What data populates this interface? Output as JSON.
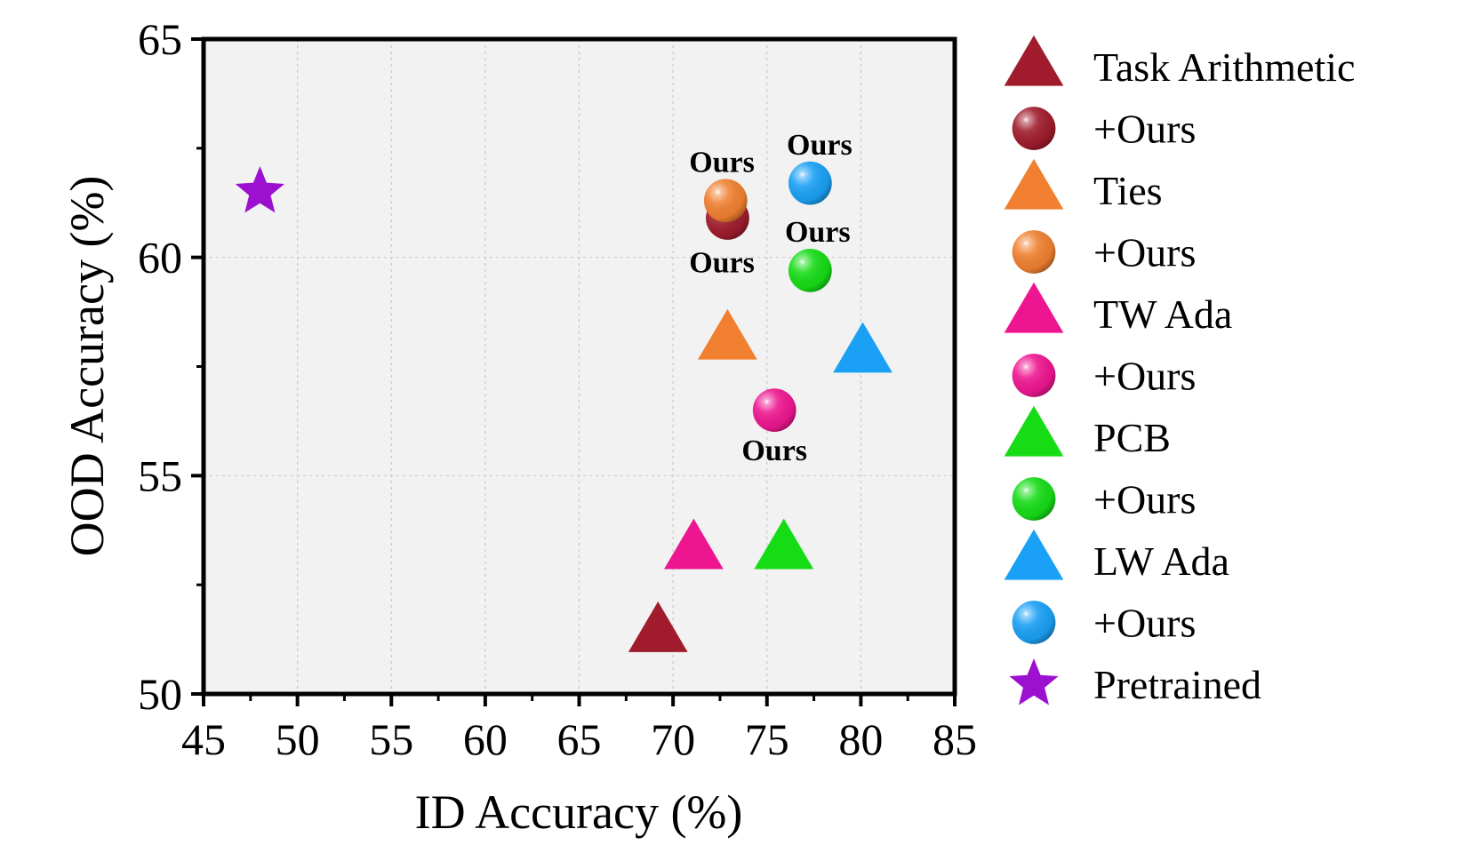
{
  "chart_data": {
    "type": "scatter",
    "xlabel": "ID Accuracy (%)",
    "ylabel": "OOD Accuracy (%)",
    "xlim": [
      45,
      85
    ],
    "ylim": [
      50,
      65
    ],
    "xticks": [
      45,
      50,
      55,
      60,
      65,
      70,
      75,
      80,
      85
    ],
    "yticks": [
      50,
      55,
      60,
      65
    ],
    "grid": true,
    "legend_position": "right",
    "series": [
      {
        "name": "Task Arithmetic",
        "marker": "triangle",
        "color": "#a01c2c",
        "points": [
          [
            69.2,
            51.4
          ]
        ]
      },
      {
        "name": "+Ours",
        "marker": "sphere",
        "color": "#a01c2c",
        "points": [
          [
            72.9,
            60.9
          ]
        ]
      },
      {
        "name": "Ties",
        "marker": "triangle",
        "color": "#f08030",
        "points": [
          [
            72.9,
            58.1
          ]
        ]
      },
      {
        "name": "+Ours",
        "marker": "sphere",
        "color": "#f08030",
        "points": [
          [
            72.8,
            61.3
          ]
        ]
      },
      {
        "name": "TW Ada",
        "marker": "triangle",
        "color": "#ee1690",
        "points": [
          [
            71.1,
            53.3
          ]
        ]
      },
      {
        "name": "+Ours",
        "marker": "sphere",
        "color": "#ee1690",
        "points": [
          [
            75.4,
            56.5
          ]
        ]
      },
      {
        "name": "PCB",
        "marker": "triangle",
        "color": "#16dc16",
        "points": [
          [
            75.9,
            53.3
          ]
        ]
      },
      {
        "name": "+Ours",
        "marker": "sphere",
        "color": "#16dc16",
        "points": [
          [
            77.3,
            59.7
          ]
        ]
      },
      {
        "name": "LW Ada",
        "marker": "triangle",
        "color": "#1aa0f5",
        "points": [
          [
            80.1,
            57.8
          ]
        ]
      },
      {
        "name": "+Ours",
        "marker": "sphere",
        "color": "#1aa0f5",
        "points": [
          [
            77.3,
            61.7
          ]
        ]
      },
      {
        "name": "Pretrained",
        "marker": "star",
        "color": "#9c10d0",
        "points": [
          [
            48.0,
            61.5
          ]
        ]
      }
    ],
    "annotations": [
      {
        "text": "Ours",
        "x": 72.6,
        "y": 62.2
      },
      {
        "text": "Ours",
        "x": 77.8,
        "y": 62.6
      },
      {
        "text": "Ours",
        "x": 72.6,
        "y": 59.9
      },
      {
        "text": "Ours",
        "x": 77.7,
        "y": 60.6
      },
      {
        "text": "Ours",
        "x": 75.4,
        "y": 55.6
      }
    ]
  }
}
